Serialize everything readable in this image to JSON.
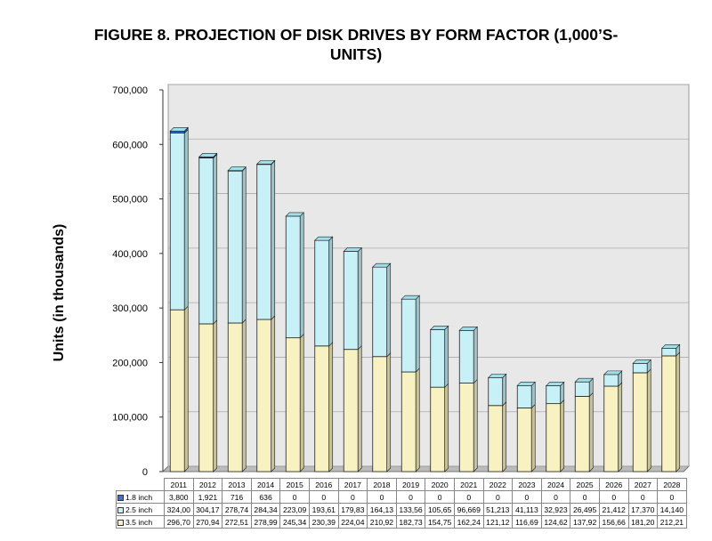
{
  "chart_data": {
    "type": "bar",
    "stacked": true,
    "title_line1": "FIGURE 8.  PROJECTION OF DISK DRIVES BY FORM FACTOR (1,000’S-",
    "title_line2": "UNITS)",
    "ylabel": "Units (in thousands)",
    "ylim": [
      0,
      700000
    ],
    "yticks": [
      "0",
      "100,000",
      "200,000",
      "300,000",
      "400,000",
      "500,000",
      "600,000",
      "700,000"
    ],
    "categories": [
      "2011",
      "2012",
      "2013",
      "2014",
      "2015",
      "2016",
      "2017",
      "2018",
      "2019",
      "2020",
      "2021",
      "2022",
      "2023",
      "2024",
      "2025",
      "2026",
      "2027",
      "2028"
    ],
    "series": [
      {
        "name": "3.5 inch",
        "color": "#f8f2c2",
        "values": [
          296700,
          270940,
          272510,
          278990,
          245340,
          230390,
          224040,
          210920,
          182730,
          154750,
          162240,
          121120,
          116690,
          124620,
          137920,
          156660,
          181200,
          212210
        ],
        "labels": [
          "296,70",
          "270,94",
          "272,51",
          "278,99",
          "245,34",
          "230,39",
          "224,04",
          "210,92",
          "182,73",
          "154,75",
          "162,24",
          "121,12",
          "116,69",
          "124,62",
          "137,92",
          "156,66",
          "181,20",
          "212,21"
        ]
      },
      {
        "name": "2.5 inch",
        "color": "#c8f1f7",
        "values": [
          324000,
          304170,
          278740,
          284340,
          223090,
          193610,
          179830,
          164130,
          133560,
          105650,
          96669,
          51213,
          41113,
          32923,
          26495,
          21412,
          17370,
          14140
        ],
        "labels": [
          "324,00",
          "304,17",
          "278,74",
          "284,34",
          "223,09",
          "193,61",
          "179,83",
          "164,13",
          "133,56",
          "105,65",
          "96,669",
          "51,213",
          "41,113",
          "32,923",
          "26,495",
          "21,412",
          "17,370",
          "14,140"
        ]
      },
      {
        "name": "1.8 inch",
        "color": "#3f6fd8",
        "values": [
          3800,
          1921,
          716,
          636,
          0,
          0,
          0,
          0,
          0,
          0,
          0,
          0,
          0,
          0,
          0,
          0,
          0,
          0
        ],
        "labels": [
          "3,800",
          "1,921",
          "716",
          "636",
          "0",
          "0",
          "0",
          "0",
          "0",
          "0",
          "0",
          "0",
          "0",
          "0",
          "0",
          "0",
          "0",
          "0"
        ]
      }
    ]
  }
}
